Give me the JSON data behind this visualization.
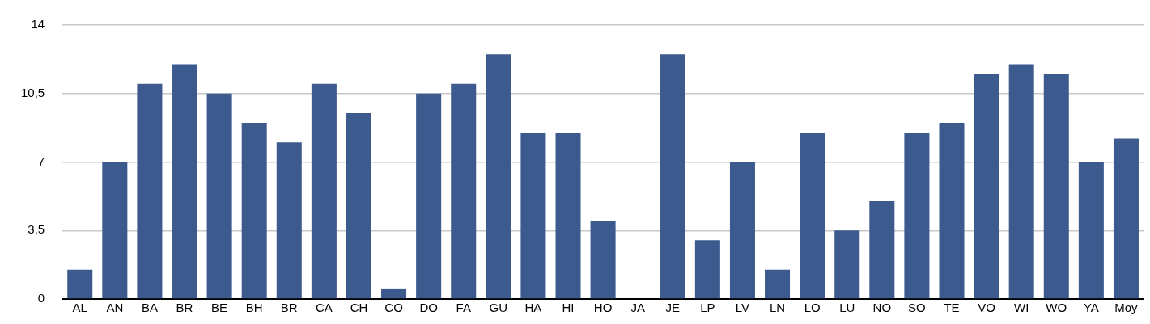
{
  "chart_data": {
    "type": "bar",
    "categories": [
      "AL",
      "AN",
      "BA",
      "BR",
      "BE",
      "BH",
      "BR",
      "CA",
      "CH",
      "CO",
      "DO",
      "FA",
      "GU",
      "HA",
      "HI",
      "HO",
      "JA",
      "JE",
      "LP",
      "LV",
      "LN",
      "LO",
      "LU",
      "NO",
      "SO",
      "TE",
      "VO",
      "WI",
      "WO",
      "YA",
      "Moy"
    ],
    "values": [
      1.5,
      7,
      11,
      12,
      10.5,
      9,
      8,
      11,
      9.5,
      0.5,
      10.5,
      11,
      12.5,
      8.5,
      8.5,
      4,
      0,
      12.5,
      3,
      7,
      1.5,
      8.5,
      3.5,
      5,
      8.5,
      9,
      11.5,
      12,
      11.5,
      7,
      8.2
    ],
    "color": "#3d5a8e",
    "ylim": [
      0,
      14
    ],
    "yticks": [
      0,
      {
        "value": 3.5,
        "label": "3,5"
      },
      7,
      {
        "value": 10.5,
        "label": "10,5"
      },
      14
    ],
    "grid": "y",
    "legend": false
  }
}
